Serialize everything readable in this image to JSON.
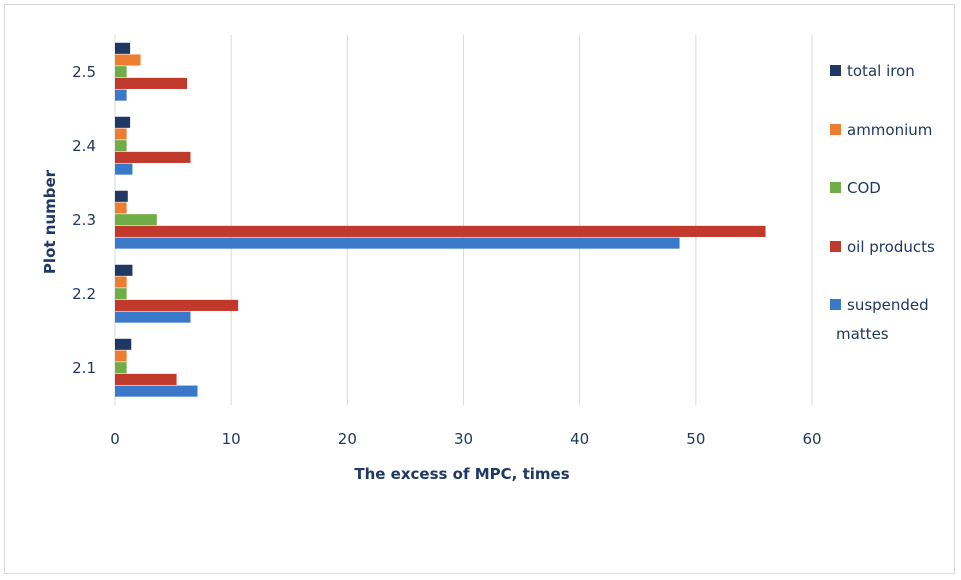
{
  "chart_data": {
    "type": "bar",
    "orientation": "horizontal",
    "categories": [
      "2.1",
      "2.2",
      "2.3",
      "2.4",
      "2.5"
    ],
    "series": [
      {
        "name": "total iron",
        "color": "#1f3864",
        "values": [
          1.4,
          1.5,
          1.1,
          1.3,
          1.3
        ]
      },
      {
        "name": "ammonium",
        "color": "#ed7d31",
        "values": [
          1.0,
          1.0,
          1.0,
          1.0,
          2.2
        ]
      },
      {
        "name": "COD",
        "color": "#70ad47",
        "values": [
          1.0,
          1.0,
          3.6,
          1.0,
          1.0
        ]
      },
      {
        "name": "oil products",
        "color": "#c0392b",
        "values": [
          5.3,
          10.6,
          56.0,
          6.5,
          6.2
        ]
      },
      {
        "name": "suspended mattes",
        "label_lines": [
          "suspended",
          "mattes"
        ],
        "color": "#3a78c9",
        "values": [
          7.1,
          6.5,
          48.6,
          1.5,
          1.0
        ]
      }
    ],
    "xlabel": "The excess of MPC, times",
    "ylabel": "Plot number",
    "x_ticks": [
      "0",
      "10",
      "20",
      "30",
      "40",
      "50",
      "60"
    ],
    "xlim": [
      0,
      60
    ],
    "grid": "vertical",
    "legend_position": "right"
  }
}
